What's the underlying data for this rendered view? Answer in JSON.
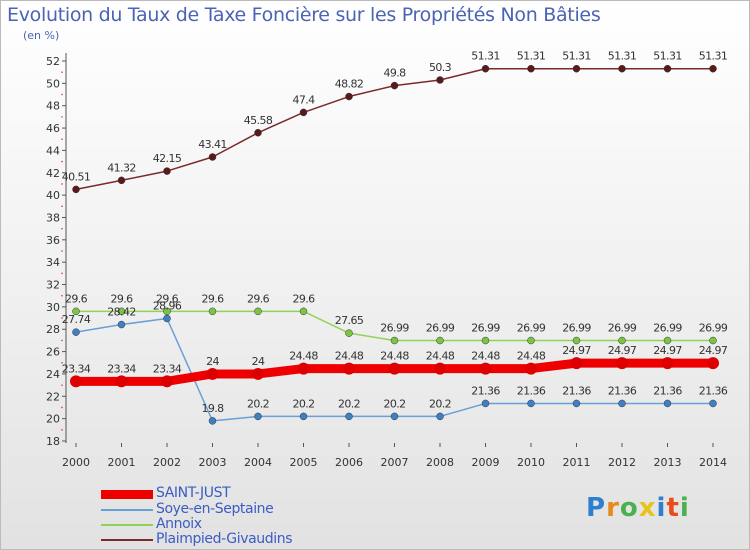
{
  "title": "Evolution du Taux de Taxe Foncière sur les Propriétés Non Bâties",
  "subtitle": "(en %)",
  "logo": {
    "text": "Proxiti",
    "colors": [
      "#2e7fcf",
      "#e8891c",
      "#4caf50",
      "#e8c31c",
      "#2e7fcf",
      "#e84c1c",
      "#4caf50"
    ]
  },
  "chart_data": {
    "type": "line",
    "title": "Evolution du Taux de Taxe Foncière sur les Propriétés Non Bâties",
    "ylabel": "(en %)",
    "xlabel": "",
    "ylim": [
      18,
      52
    ],
    "ytick_step": 2,
    "x": [
      "2000",
      "2001",
      "2002",
      "2003",
      "2004",
      "2005",
      "2006",
      "2007",
      "2008",
      "2009",
      "2010",
      "2011",
      "2012",
      "2013",
      "2014"
    ],
    "series": [
      {
        "name": "Plaimpied-Givaudins",
        "color": "#7a2a2a",
        "marker": "#5a1a1a",
        "values": [
          40.51,
          41.32,
          42.15,
          43.41,
          45.58,
          47.4,
          48.82,
          49.8,
          50.3,
          51.31,
          51.31,
          51.31,
          51.31,
          51.31,
          51.31
        ],
        "labels": [
          "40.51",
          "41.32",
          "42.15",
          "43.41",
          "45.58",
          "47.4",
          "48.82",
          "49.8",
          "50.3",
          "51.31",
          "51.31",
          "51.31",
          "51.31",
          "51.31",
          "51.31"
        ]
      },
      {
        "name": "Annoix",
        "color": "#8fd45a",
        "marker": "#7cc444",
        "values": [
          29.6,
          29.6,
          29.6,
          29.6,
          29.6,
          29.6,
          27.65,
          26.99,
          26.99,
          26.99,
          26.99,
          26.99,
          26.99,
          26.99,
          26.99
        ],
        "labels": [
          "29.6",
          "29.6",
          "29.6",
          "29.6",
          "29.6",
          "29.6",
          "27.65",
          "26.99",
          "26.99",
          "26.99",
          "26.99",
          "26.99",
          "26.99",
          "26.99",
          "26.99"
        ]
      },
      {
        "name": "Soye-en-Septaine",
        "color": "#6a9fd6",
        "marker": "#3f7fc4",
        "values": [
          27.74,
          28.42,
          28.96,
          19.8,
          20.2,
          20.2,
          20.2,
          20.2,
          20.2,
          21.36,
          21.36,
          21.36,
          21.36,
          21.36,
          21.36
        ],
        "labels": [
          "27.74",
          "28.42",
          "28.96",
          "19.8",
          "20.2",
          "20.2",
          "20.2",
          "20.2",
          "20.2",
          "21.36",
          "21.36",
          "21.36",
          "21.36",
          "21.36",
          "21.36"
        ]
      },
      {
        "name": "SAINT-JUST",
        "color": "#ee0000",
        "marker": "#dd0000",
        "values": [
          23.34,
          23.34,
          23.34,
          24,
          24,
          24.48,
          24.48,
          24.48,
          24.48,
          24.48,
          24.48,
          24.97,
          24.97,
          24.97,
          24.97
        ],
        "labels": [
          "23.34",
          "23.34",
          "23.34",
          "24",
          "24",
          "24.48",
          "24.48",
          "24.48",
          "24.48",
          "24.48",
          "24.48",
          "24.97",
          "24.97",
          "24.97",
          "24.97"
        ]
      }
    ],
    "legend": [
      "SAINT-JUST",
      "Soye-en-Septaine",
      "Annoix",
      "Plaimpied-Givaudins"
    ],
    "legend_position": "bottom-left",
    "grid": false
  }
}
